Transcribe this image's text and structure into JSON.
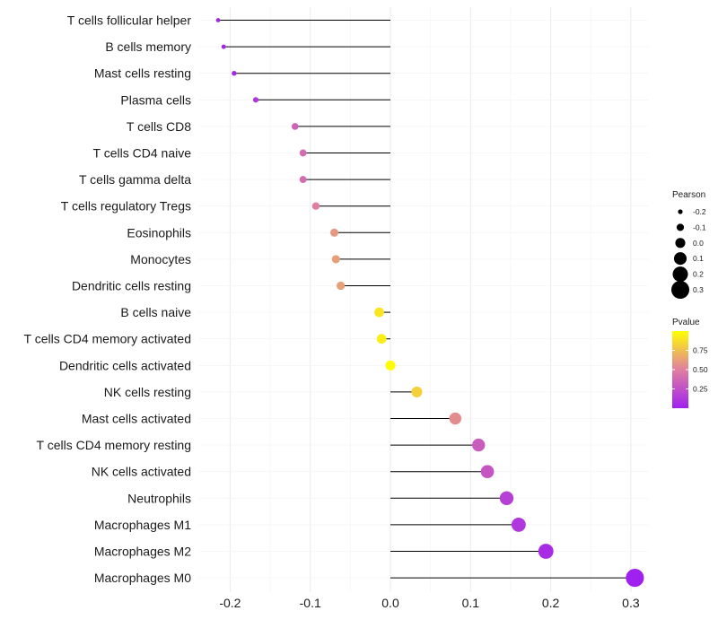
{
  "chart_data": {
    "type": "lollipop",
    "title": "",
    "xlabel": "",
    "ylabel": "",
    "xlim": [
      -0.235,
      0.315
    ],
    "xticks": [
      -0.2,
      -0.1,
      0.0,
      0.1,
      0.2,
      0.3
    ],
    "xtick_labels": [
      "-0.2",
      "-0.1",
      "0.0",
      "0.1",
      "0.2",
      "0.3"
    ],
    "grid": true,
    "categories": [
      "T cells follicular helper",
      "B cells memory",
      "Mast cells resting",
      "Plasma cells",
      "T cells CD8",
      "T cells CD4 naive",
      "T cells gamma delta",
      "T cells regulatory  Tregs ",
      "Eosinophils",
      "Monocytes",
      "Dendritic cells resting",
      "B cells naive",
      "T cells CD4 memory activated",
      "Dendritic cells activated",
      "NK cells resting",
      "Mast cells activated",
      "T cells CD4 memory resting",
      "NK cells activated",
      "Neutrophils",
      "Macrophages M1",
      "Macrophages M2",
      "Macrophages M0"
    ],
    "pearson": [
      -0.215,
      -0.208,
      -0.195,
      -0.168,
      -0.119,
      -0.109,
      -0.109,
      -0.093,
      -0.07,
      -0.068,
      -0.062,
      -0.014,
      -0.011,
      0.0,
      0.033,
      0.081,
      0.11,
      0.121,
      0.145,
      0.16,
      0.194,
      0.305
    ],
    "pvalue": [
      0.02,
      0.02,
      0.03,
      0.12,
      0.35,
      0.4,
      0.4,
      0.5,
      0.6,
      0.62,
      0.63,
      0.9,
      0.93,
      0.99,
      0.82,
      0.55,
      0.32,
      0.28,
      0.17,
      0.12,
      0.06,
      0.001
    ],
    "legend": {
      "size_title": "Pearson",
      "size_values": [
        -0.2,
        -0.1,
        0.0,
        0.1,
        0.2,
        0.3
      ],
      "size_labels": [
        "-0.2",
        "-0.1",
        "0.0",
        "0.1",
        "0.2",
        "0.3"
      ],
      "color_title": "Pvalue",
      "color_ticks": [
        0.25,
        0.5,
        0.75
      ],
      "color_tick_labels": [
        "0.25",
        "0.50",
        "0.75"
      ],
      "color_low": "#a020f0",
      "color_mid": "#e07fa0",
      "color_high": "#ffff00",
      "placement": "right"
    }
  }
}
